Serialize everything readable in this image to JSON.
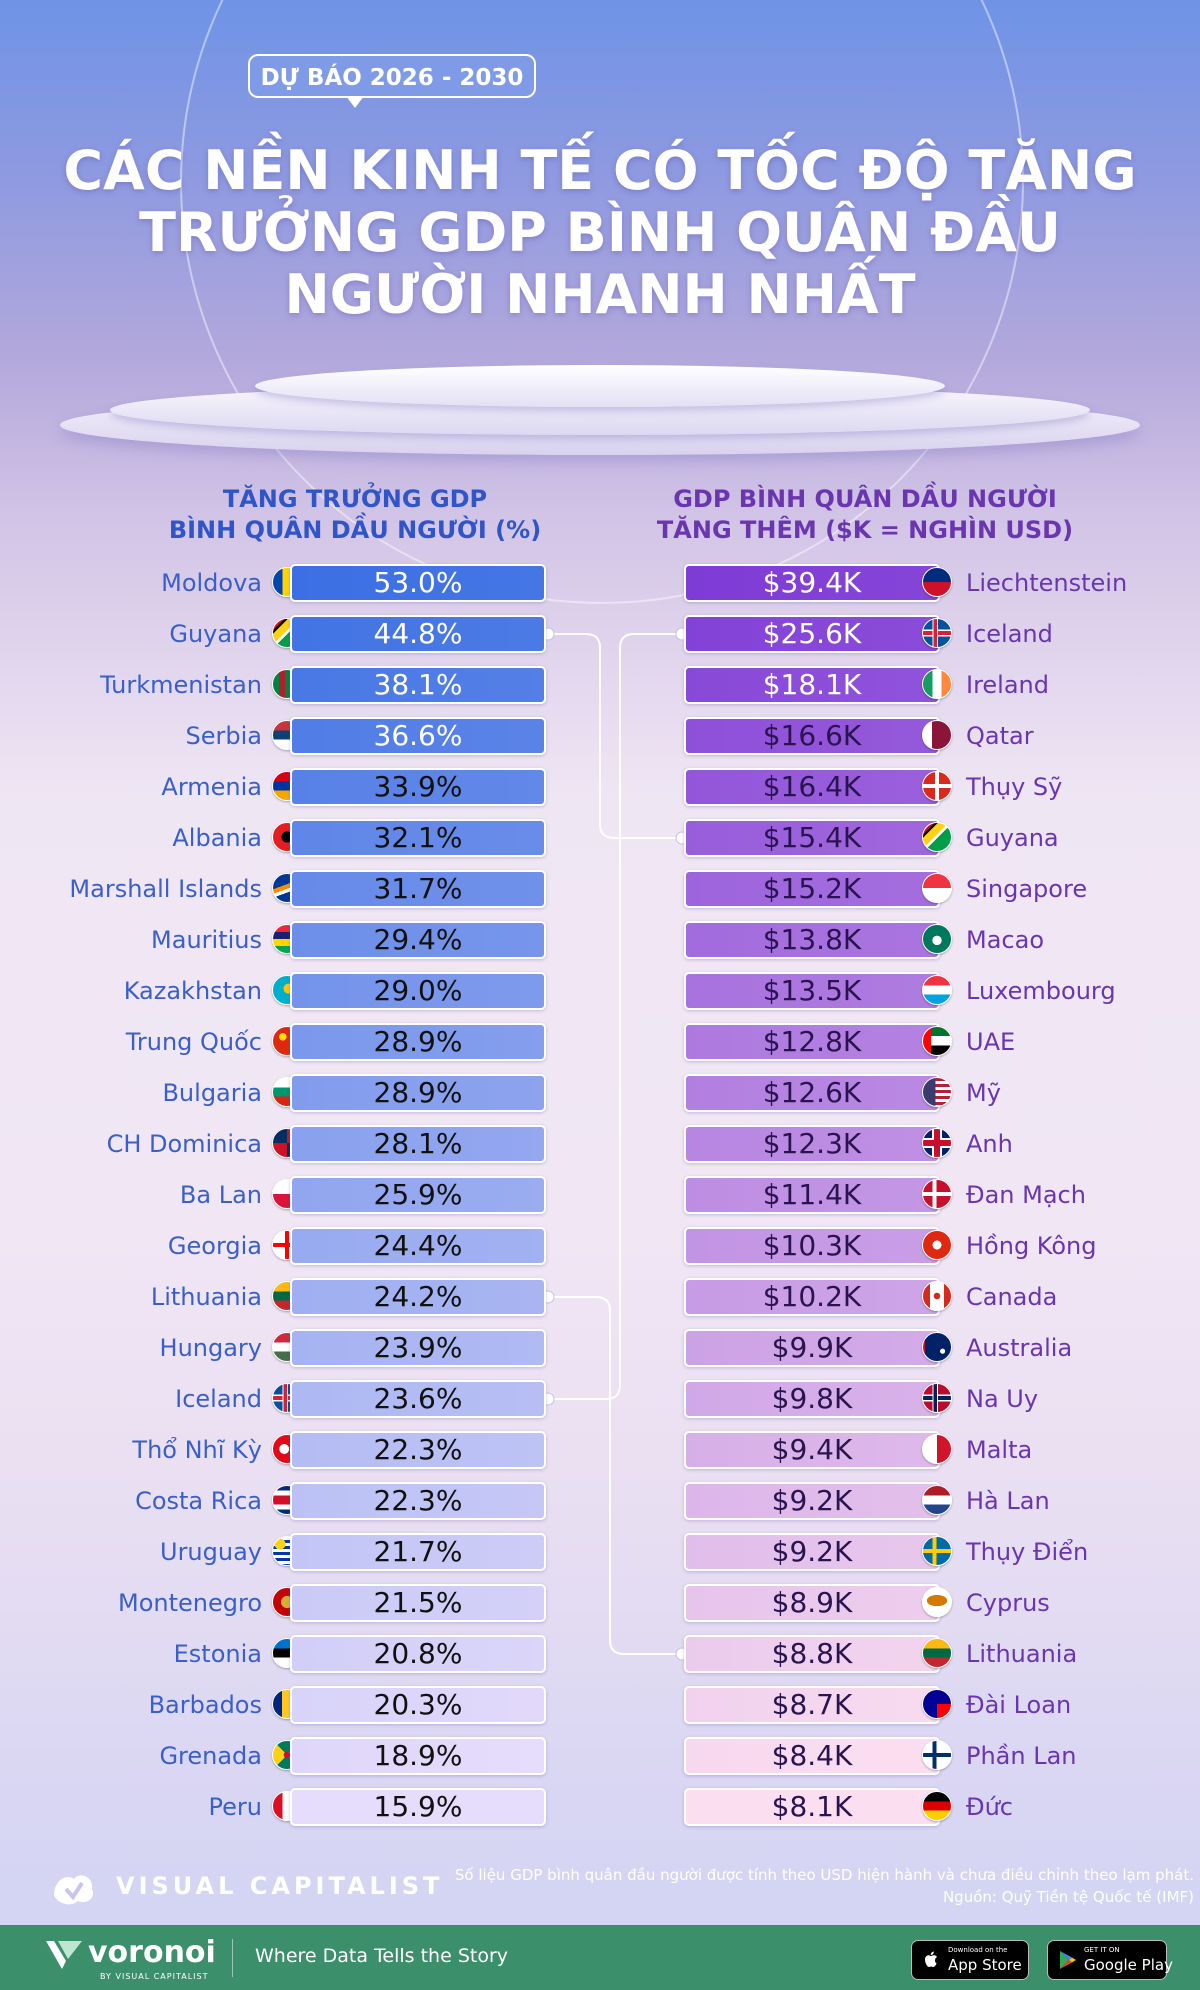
{
  "header": {
    "badge": "DỰ BÁO  2026 - 2030",
    "title_lines": [
      "CÁC NỀN KINH TẾ CÓ TỐC ĐỘ TĂNG",
      "TRƯỞNG GDP BÌNH QUÂN ĐẦU",
      "NGƯỜI NHANH NHẤT"
    ]
  },
  "chart_data": [
    {
      "type": "bar",
      "title": "TĂNG TRƯỞNG GDP BÌNH QUÂN DẦU NGƯỜI (%)",
      "title_lines": [
        "TĂNG TRƯỞNG GDP",
        "BÌNH QUÂN DẦU NGƯỜI (%)"
      ],
      "categories": [
        "Moldova",
        "Guyana",
        "Turkmenistan",
        "Serbia",
        "Armenia",
        "Albania",
        "Marshall Islands",
        "Mauritius",
        "Kazakhstan",
        "Trung Quốc",
        "Bulgaria",
        "CH Dominica",
        "Ba Lan",
        "Georgia",
        "Lithuania",
        "Hungary",
        "Iceland",
        "Thổ Nhĩ Kỳ",
        "Costa Rica",
        "Uruguay",
        "Montenegro",
        "Estonia",
        "Barbados",
        "Grenada",
        "Peru"
      ],
      "values": [
        53.0,
        44.8,
        38.1,
        36.6,
        33.9,
        32.1,
        31.7,
        29.4,
        29.0,
        28.9,
        28.9,
        28.1,
        25.9,
        24.4,
        24.2,
        23.9,
        23.6,
        22.3,
        22.3,
        21.7,
        21.5,
        20.8,
        20.3,
        18.9,
        15.9
      ],
      "labels": [
        "53.0%",
        "44.8%",
        "38.1%",
        "36.6%",
        "33.9%",
        "32.1%",
        "31.7%",
        "29.4%",
        "29.0%",
        "28.9%",
        "28.9%",
        "28.1%",
        "25.9%",
        "24.4%",
        "24.2%",
        "23.9%",
        "23.6%",
        "22.3%",
        "22.3%",
        "21.7%",
        "21.5%",
        "20.8%",
        "20.3%",
        "18.9%",
        "15.9%"
      ],
      "flags": [
        "flag-moldova",
        "flag-guyana",
        "flag-turkmenistan",
        "flag-serbia",
        "flag-armenia",
        "flag-albania",
        "flag-marshall-islands",
        "flag-mauritius",
        "flag-kazakhstan",
        "flag-china",
        "flag-bulgaria",
        "flag-dominican-republic",
        "flag-poland",
        "flag-georgia",
        "flag-lithuania",
        "flag-hungary",
        "flag-iceland",
        "flag-turkey",
        "flag-costa-rica",
        "flag-uruguay",
        "flag-montenegro",
        "flag-estonia",
        "flag-barbados",
        "flag-grenada",
        "flag-peru"
      ],
      "colors": {
        "name": "#3a5fc8",
        "bar_top": "#3b6fe3",
        "bar_bottom": "#e6dcfb"
      }
    },
    {
      "type": "bar",
      "title": "GDP BÌNH QUÂN DẦU NGƯỜI TĂNG THÊM ($K = NGHÌN USD)",
      "title_lines": [
        "GDP BÌNH QUÂN DẦU NGƯỜI",
        "TĂNG THÊM ($K = NGHÌN USD)"
      ],
      "categories": [
        "Liechtenstein",
        "Iceland",
        "Ireland",
        "Qatar",
        "Thụy Sỹ",
        "Guyana",
        "Singapore",
        "Macao",
        "Luxembourg",
        "UAE",
        "Mỹ",
        "Anh",
        "Đan Mạch",
        "Hồng Kông",
        "Canada",
        "Australia",
        "Na Uy",
        "Malta",
        "Hà Lan",
        "Thụy Điển",
        "Cyprus",
        "Lithuania",
        "Đài Loan",
        "Phần Lan",
        "Đức"
      ],
      "values": [
        39.4,
        25.6,
        18.1,
        16.6,
        16.4,
        15.4,
        15.2,
        13.8,
        13.5,
        12.8,
        12.6,
        12.3,
        11.4,
        10.3,
        10.2,
        9.9,
        9.8,
        9.4,
        9.2,
        9.2,
        8.9,
        8.8,
        8.7,
        8.4,
        8.1
      ],
      "unit": "$K",
      "labels": [
        "$39.4K",
        "$25.6K",
        "$18.1K",
        "$16.6K",
        "$16.4K",
        "$15.4K",
        "$15.2K",
        "$13.8K",
        "$13.5K",
        "$12.8K",
        "$12.6K",
        "$12.3K",
        "$11.4K",
        "$10.3K",
        "$10.2K",
        "$9.9K",
        "$9.8K",
        "$9.4K",
        "$9.2K",
        "$9.2K",
        "$8.9K",
        "$8.8K",
        "$8.7K",
        "$8.4K",
        "$8.1K"
      ],
      "flags": [
        "flag-liechtenstein",
        "flag-iceland",
        "flag-ireland",
        "flag-qatar",
        "flag-switzerland",
        "flag-guyana",
        "flag-singapore",
        "flag-macao",
        "flag-luxembourg",
        "flag-uae",
        "flag-usa",
        "flag-uk",
        "flag-denmark",
        "flag-hong-kong",
        "flag-canada",
        "flag-australia",
        "flag-norway",
        "flag-malta",
        "flag-netherlands",
        "flag-sweden",
        "flag-cyprus",
        "flag-lithuania",
        "flag-taiwan",
        "flag-finland",
        "flag-germany"
      ],
      "colors": {
        "name": "#6a36b0",
        "bar_top": "#7e3bd6",
        "bar_bottom": "#fbdff0"
      }
    }
  ],
  "connections": [
    {
      "country": "Guyana",
      "left_rank": 2,
      "right_rank": 6
    },
    {
      "country": "Iceland",
      "left_rank": 17,
      "right_rank": 2
    },
    {
      "country": "Lithuania",
      "left_rank": 15,
      "right_rank": 22
    }
  ],
  "footer": {
    "brand": "VISUAL CAPITALIST",
    "note": "Số liệu GDP bình quân đầu người được tính theo USD hiện hành và chưa điều chỉnh theo lạm phát.",
    "source": "Nguồn: Quỹ Tiền tệ Quốc tế (IMF)",
    "voronoi_name": "voronoi",
    "voronoi_by": "BY VISUAL CAPITALIST",
    "tagline": "Where Data Tells the Story",
    "app_store_small": "Download on the",
    "app_store_big": "App Store",
    "google_small": "GET IT ON",
    "google_big": "Google Play",
    "colors": {
      "footer_bg": "#3b8f6a"
    }
  }
}
